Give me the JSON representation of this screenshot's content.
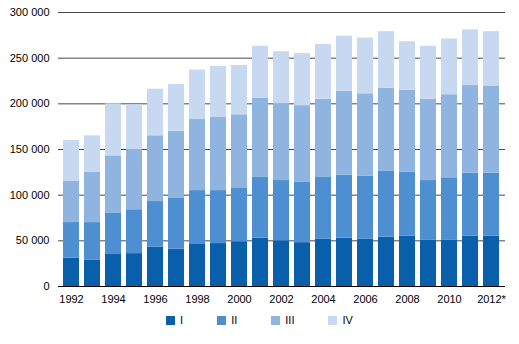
{
  "chart_data": {
    "type": "bar",
    "stacked": true,
    "grid": true,
    "categories": [
      "1992",
      null,
      "1994",
      null,
      "1996",
      null,
      "1998",
      null,
      "2000",
      null,
      "2002",
      null,
      "2004",
      null,
      "2006",
      null,
      "2008",
      null,
      "2010",
      null,
      "2012*"
    ],
    "series": [
      {
        "name": "I",
        "color": "#0a5fab",
        "values": [
          31000,
          29000,
          35000,
          36000,
          43000,
          41000,
          46000,
          47000,
          49000,
          53000,
          50000,
          48000,
          52000,
          53000,
          52000,
          54000,
          55000,
          51000,
          51000,
          55000,
          55000
        ]
      },
      {
        "name": "II",
        "color": "#4d8fd0",
        "values": [
          39000,
          41000,
          45000,
          48000,
          50000,
          56000,
          59000,
          58000,
          59000,
          67000,
          66000,
          66000,
          68000,
          69000,
          69000,
          72000,
          70000,
          65000,
          68000,
          69000,
          69000
        ]
      },
      {
        "name": "III",
        "color": "#8fb4e0",
        "values": [
          45000,
          55000,
          63000,
          66000,
          72000,
          73000,
          78000,
          80000,
          80000,
          86000,
          84000,
          84000,
          85000,
          92000,
          90000,
          91000,
          90000,
          89000,
          91000,
          96000,
          95000
        ]
      },
      {
        "name": "IV",
        "color": "#c6d9f0",
        "values": [
          45000,
          40000,
          57000,
          49000,
          51000,
          51000,
          54000,
          56000,
          54000,
          57000,
          57000,
          57000,
          60000,
          60000,
          61000,
          62000,
          53000,
          58000,
          61000,
          61000,
          60000
        ]
      }
    ],
    "ylim": [
      0,
      300000
    ],
    "yticks": [
      0,
      {
        "value": 50000,
        "label": "50 000"
      },
      {
        "value": 100000,
        "label": "100 000"
      },
      {
        "value": 150000,
        "label": "150 000"
      },
      {
        "value": 200000,
        "label": "200 000"
      },
      {
        "value": 250000,
        "label": "250 000"
      },
      {
        "value": 300000,
        "label": "300 000"
      }
    ],
    "legend": "bottom"
  }
}
